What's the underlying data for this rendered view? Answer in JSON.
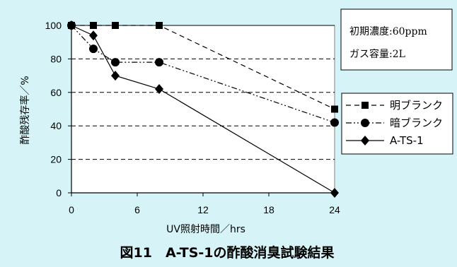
{
  "chart_data": {
    "type": "line",
    "xlabel": "UV照射時間／hrs",
    "ylabel": "酢酸残存率／%",
    "xlim": [
      0,
      24
    ],
    "ylim": [
      0,
      100
    ],
    "xticks": [
      0,
      6,
      12,
      18,
      24
    ],
    "yticks": [
      0,
      20,
      40,
      60,
      80,
      100
    ],
    "grid": "horizontal dashed",
    "legend_position": "right",
    "conditions": [
      "初期濃度:60ppm",
      "ガス容量:2L"
    ],
    "series": [
      {
        "name": "明ブランク",
        "marker": "square",
        "line": "dashed",
        "x": [
          0,
          2,
          4,
          8,
          24
        ],
        "y": [
          100,
          100,
          100,
          100,
          50
        ]
      },
      {
        "name": "暗ブランク",
        "marker": "circle",
        "line": "dash-dot-dot",
        "x": [
          0,
          2,
          4,
          8,
          24
        ],
        "y": [
          100,
          86,
          78,
          78,
          42
        ]
      },
      {
        "name": "A-TS-1",
        "marker": "diamond",
        "line": "solid",
        "x": [
          0,
          2,
          4,
          8,
          24
        ],
        "y": [
          100,
          94,
          70,
          62,
          0
        ]
      }
    ],
    "caption": "図11　A-TS-1の酢酸消臭試験結果"
  },
  "colors": {
    "background": "#d6f3f7",
    "plot_area": "#ffffff",
    "grid": "#000000",
    "series": "#000000"
  }
}
